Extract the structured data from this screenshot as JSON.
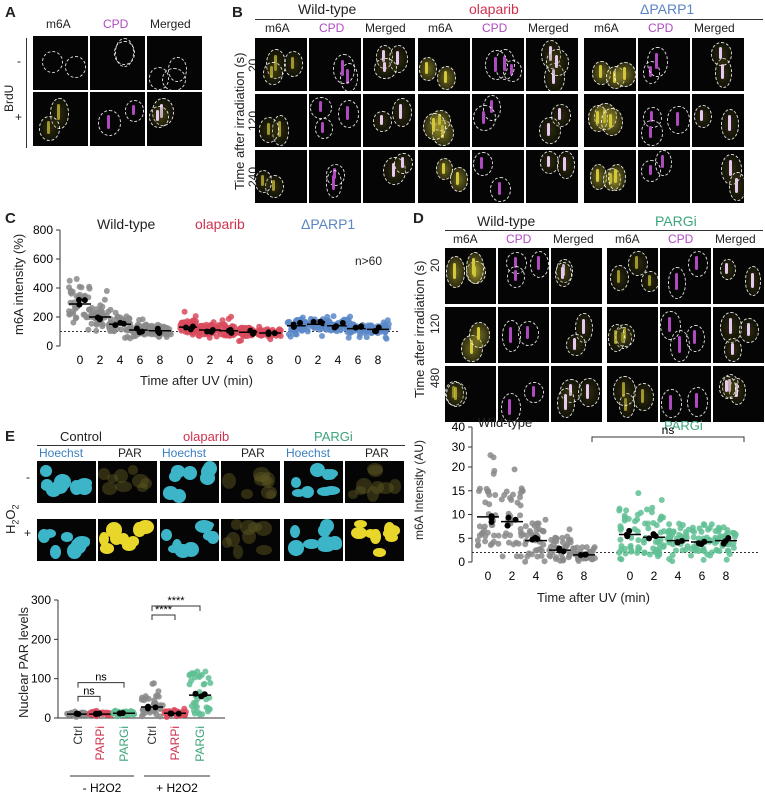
{
  "figure": {
    "panel_letters": [
      "A",
      "B",
      "C",
      "D",
      "E"
    ]
  },
  "colors": {
    "m6a": "#d4c83a",
    "cpd": "#b04ac0",
    "wild_type": "#333333",
    "olaparib": "#d0314f",
    "parp1": "#5a86c4",
    "pargi": "#3ca57a",
    "hoechst": "#3a7fc1",
    "gray_dot": "#8a8a8a",
    "red_dot": "#d94a5d",
    "blue_dot": "#5b88c8",
    "green_dot": "#5fbf94"
  },
  "panelA": {
    "col_headers": [
      "m6A",
      "CPD",
      "Merged"
    ],
    "row_label": "BrdU",
    "rows": [
      "-",
      "+"
    ]
  },
  "panelB": {
    "groups": [
      {
        "name": "Wild-type",
        "color": "#333333"
      },
      {
        "name": "olaparib",
        "color": "#d0314f"
      },
      {
        "name": "ΔPARP1",
        "color": "#5a86c4"
      }
    ],
    "col_headers": [
      "m6A",
      "CPD",
      "Merged"
    ],
    "y_title": "Time after irradiation (s)",
    "rows": [
      "20",
      "120",
      "240"
    ]
  },
  "panelD": {
    "groups": [
      {
        "name": "Wild-type",
        "color": "#333333"
      },
      {
        "name": "PARGi",
        "color": "#3ca57a"
      }
    ],
    "col_headers": [
      "m6A",
      "CPD",
      "Merged"
    ],
    "y_title": "Time after irradiation (s)",
    "rows": [
      "20",
      "120",
      "480"
    ]
  },
  "panelE_images": {
    "groups": [
      {
        "name": "Control",
        "color": "#333333"
      },
      {
        "name": "olaparib",
        "color": "#d0314f"
      },
      {
        "name": "PARGi",
        "color": "#3ca57a"
      }
    ],
    "col_headers": [
      "Hoechst",
      "PAR"
    ],
    "row_label": "H2O2",
    "rows": [
      "-",
      "+"
    ]
  },
  "chart_data": [
    {
      "panel": "C",
      "type": "scatter",
      "ylabel": "m6A intensity (%)",
      "xlabel": "Time after UV (min)",
      "ylim": [
        0,
        800
      ],
      "yticks": [
        0,
        200,
        400,
        600,
        800
      ],
      "reference_line": 100,
      "annotation": "n>60",
      "groups": [
        {
          "name": "Wild-type",
          "categories": [
            "0",
            "2",
            "4",
            "6",
            "8"
          ],
          "medians": [
            290,
            200,
            150,
            110,
            105
          ]
        },
        {
          "name": "olaparib",
          "categories": [
            "0",
            "2",
            "4",
            "6",
            "8"
          ],
          "medians": [
            130,
            110,
            105,
            95,
            90
          ]
        },
        {
          "name": "ΔPARP1",
          "categories": [
            "0",
            "2",
            "4",
            "6",
            "8"
          ],
          "medians": [
            140,
            150,
            140,
            120,
            115
          ]
        }
      ]
    },
    {
      "panel": "D",
      "type": "scatter",
      "ylabel": "m6A Intensity (AU)",
      "xlabel": "Time after UV (min)",
      "ylim": [
        0,
        40
      ],
      "yticks": [
        0,
        5,
        10,
        15,
        20,
        30,
        40
      ],
      "reference_line": 2,
      "groups": [
        {
          "name": "Wild-type",
          "categories": [
            "0",
            "2",
            "4",
            "6",
            "8"
          ],
          "medians": [
            9.5,
            8.5,
            4.5,
            2.5,
            1.5
          ]
        },
        {
          "name": "PARGi",
          "categories": [
            "0",
            "2",
            "4",
            "6",
            "8"
          ],
          "medians": [
            5.8,
            5.2,
            4.5,
            4.2,
            4.5
          ]
        }
      ],
      "significance": "ns"
    },
    {
      "panel": "E",
      "type": "scatter",
      "ylabel": "Nuclear PAR levels",
      "ylim": [
        0,
        300
      ],
      "yticks": [
        0,
        100,
        200,
        300
      ],
      "categories": [
        "Ctrl",
        "PARPi",
        "PARGi",
        "Ctrl",
        "PARPi",
        "PARGi"
      ],
      "category_colors": [
        "#333333",
        "#d0314f",
        "#3ca57a",
        "#333333",
        "#d0314f",
        "#3ca57a"
      ],
      "conditions": [
        "- H2O2",
        "+ H2O2"
      ],
      "medians": [
        10,
        10,
        12,
        28,
        12,
        58
      ],
      "significance": [
        {
          "pair": [
            "Ctrl",
            "PARGi"
          ],
          "condition": "- H2O2",
          "label": "ns"
        },
        {
          "pair": [
            "Ctrl",
            "PARPi"
          ],
          "condition": "- H2O2",
          "label": "ns"
        },
        {
          "pair": [
            "Ctrl",
            "PARGi"
          ],
          "condition": "+ H2O2",
          "label": "****"
        },
        {
          "pair": [
            "Ctrl",
            "PARPi"
          ],
          "condition": "+ H2O2",
          "label": "****"
        }
      ]
    }
  ]
}
